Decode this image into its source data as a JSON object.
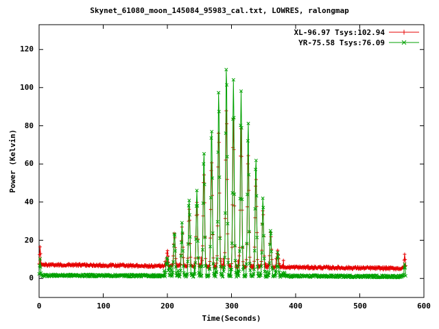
{
  "window": {
    "background": "#ffffff",
    "text_color": "#000000"
  },
  "chart_data": {
    "type": "line",
    "title": "Skynet_61080_moon_145084_95983_cal.txt, LOWRES, ralongmap",
    "xlabel": "Time(Seconds)",
    "ylabel": "Power (Kelvin)",
    "xlim": [
      0,
      600
    ],
    "ylim": [
      -10,
      133
    ],
    "xticks": [
      0,
      100,
      200,
      300,
      400,
      500,
      600
    ],
    "yticks": [
      0,
      20,
      40,
      60,
      80,
      100,
      120
    ],
    "grid": false,
    "legend_position": "top-right-inside",
    "border_color": "#000000",
    "sampling": {
      "t_start": 0,
      "t_end": 572,
      "t_step": 0.75,
      "peak_width_default": 1.6
    },
    "series": [
      {
        "name": "XL-96.97 Tsys:102.94",
        "color": "#e60000",
        "marker": "plus",
        "baseline": {
          "start": 7.2,
          "end": 5.2,
          "noise": 0.7
        },
        "scatter": {
          "t0": 193,
          "t1": 385,
          "prob": 0.1,
          "amp": 4
        },
        "peaks": [
          {
            "t": 1.5,
            "h": 9,
            "w": 1.0
          },
          {
            "t": 200,
            "h": 8
          },
          {
            "t": 211,
            "h": 17
          },
          {
            "t": 223,
            "h": 19
          },
          {
            "t": 234,
            "h": 30
          },
          {
            "t": 246,
            "h": 34
          },
          {
            "t": 257,
            "h": 49
          },
          {
            "t": 269,
            "h": 56
          },
          {
            "t": 280,
            "h": 71
          },
          {
            "t": 292,
            "h": 83
          },
          {
            "t": 303,
            "h": 77
          },
          {
            "t": 315,
            "h": 72
          },
          {
            "t": 326,
            "h": 59
          },
          {
            "t": 338,
            "h": 47
          },
          {
            "t": 349,
            "h": 30
          },
          {
            "t": 361,
            "h": 18
          },
          {
            "t": 372,
            "h": 9
          },
          {
            "t": 570,
            "h": 8,
            "w": 1.0
          }
        ]
      },
      {
        "name": "YR-75.58 Tsys:76.09",
        "color": "#00a000",
        "marker": "cross",
        "baseline": {
          "start": 1.6,
          "end": 1.0,
          "noise": 0.6
        },
        "scatter": {
          "t0": 193,
          "t1": 385,
          "prob": 0.28,
          "amp": 5
        },
        "peaks": [
          {
            "t": 1.5,
            "h": 8.5,
            "w": 1.0
          },
          {
            "t": 200,
            "h": 10
          },
          {
            "t": 211,
            "h": 23
          },
          {
            "t": 223,
            "h": 25
          },
          {
            "t": 234,
            "h": 40
          },
          {
            "t": 246,
            "h": 45
          },
          {
            "t": 257,
            "h": 65
          },
          {
            "t": 269,
            "h": 75
          },
          {
            "t": 280,
            "h": 95
          },
          {
            "t": 292,
            "h": 111
          },
          {
            "t": 303,
            "h": 103
          },
          {
            "t": 315,
            "h": 96
          },
          {
            "t": 326,
            "h": 78
          },
          {
            "t": 338,
            "h": 62
          },
          {
            "t": 349,
            "h": 40
          },
          {
            "t": 361,
            "h": 24
          },
          {
            "t": 372,
            "h": 12
          },
          {
            "t": 570,
            "h": 7,
            "w": 1.0
          }
        ]
      }
    ]
  }
}
